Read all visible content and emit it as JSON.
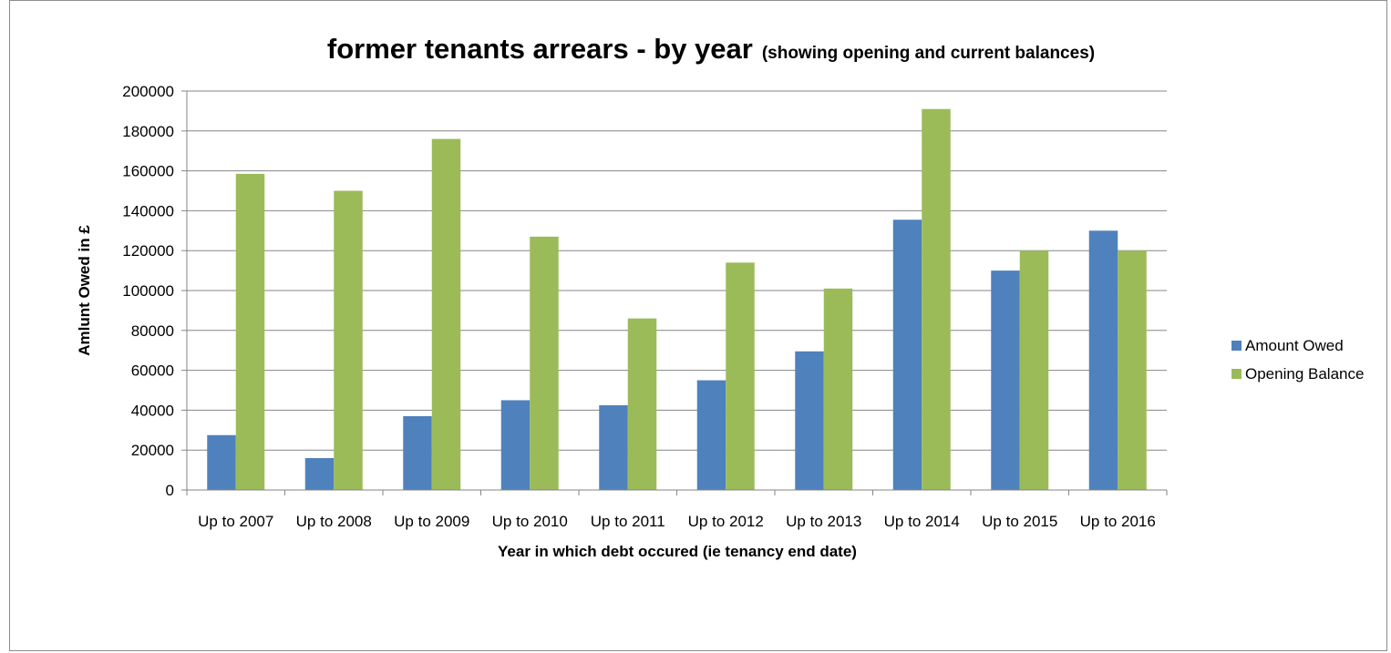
{
  "chart_data": {
    "type": "bar",
    "title": "former tenants arrears - by year",
    "subtitle": "(showing opening and current balances)",
    "xlabel": "Year in which debt occured (ie tenancy end date)",
    "ylabel": "Amlunt Owed in £",
    "categories": [
      "Up to 2007",
      "Up to 2008",
      "Up to 2009",
      "Up to 2010",
      "Up to 2011",
      "Up to 2012",
      "Up to 2013",
      "Up to 2014",
      "Up to 2015",
      "Up to 2016"
    ],
    "series": [
      {
        "name": "Amount Owed",
        "color": "#4F81BD",
        "values": [
          27500,
          16000,
          37000,
          45000,
          42500,
          55000,
          69500,
          135500,
          110000,
          130000
        ]
      },
      {
        "name": "Opening Balance",
        "color": "#9BBB59",
        "values": [
          158500,
          150000,
          176000,
          127000,
          86000,
          114000,
          101000,
          191000,
          120000,
          120000
        ]
      }
    ],
    "ylim": [
      0,
      200000
    ],
    "yticks": [
      "0",
      "20000",
      "40000",
      "60000",
      "80000",
      "100000",
      "120000",
      "140000",
      "160000",
      "180000",
      "200000"
    ],
    "grid": true,
    "legend_position": "right"
  }
}
